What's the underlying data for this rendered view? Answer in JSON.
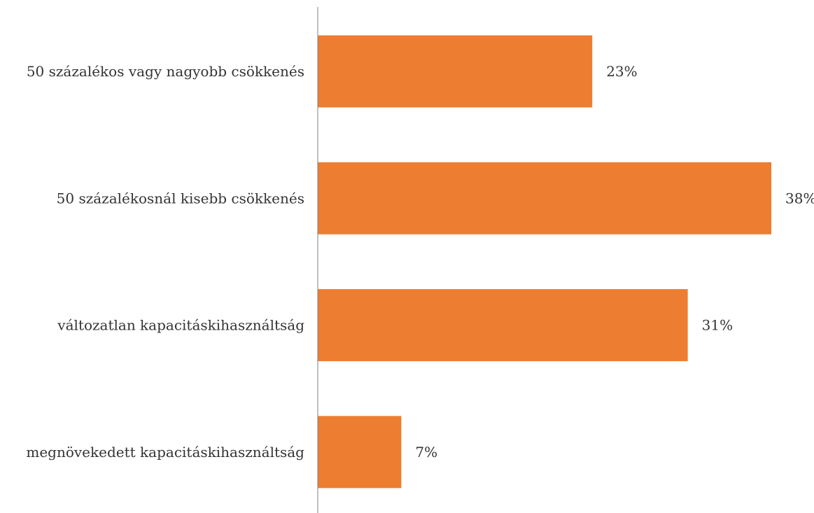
{
  "chart_data": {
    "type": "bar",
    "orientation": "horizontal",
    "categories": [
      "50 százalékos vagy nagyobb csökkenés",
      "50 százalékosnál kisebb csökkenés",
      "változatlan kapacitáskihasználtság",
      "megnövekedett kapacitáskihasználtság"
    ],
    "values": [
      23,
      38,
      31,
      7
    ],
    "value_labels": [
      "23%",
      "38%",
      "31%",
      "7%"
    ],
    "unit": "%",
    "xlim": [
      0,
      40
    ],
    "title": "",
    "xlabel": "",
    "ylabel": "",
    "grid": false,
    "legend": "none",
    "bar_color": "#ED7D31",
    "axis_color": "#7F7F7F"
  }
}
